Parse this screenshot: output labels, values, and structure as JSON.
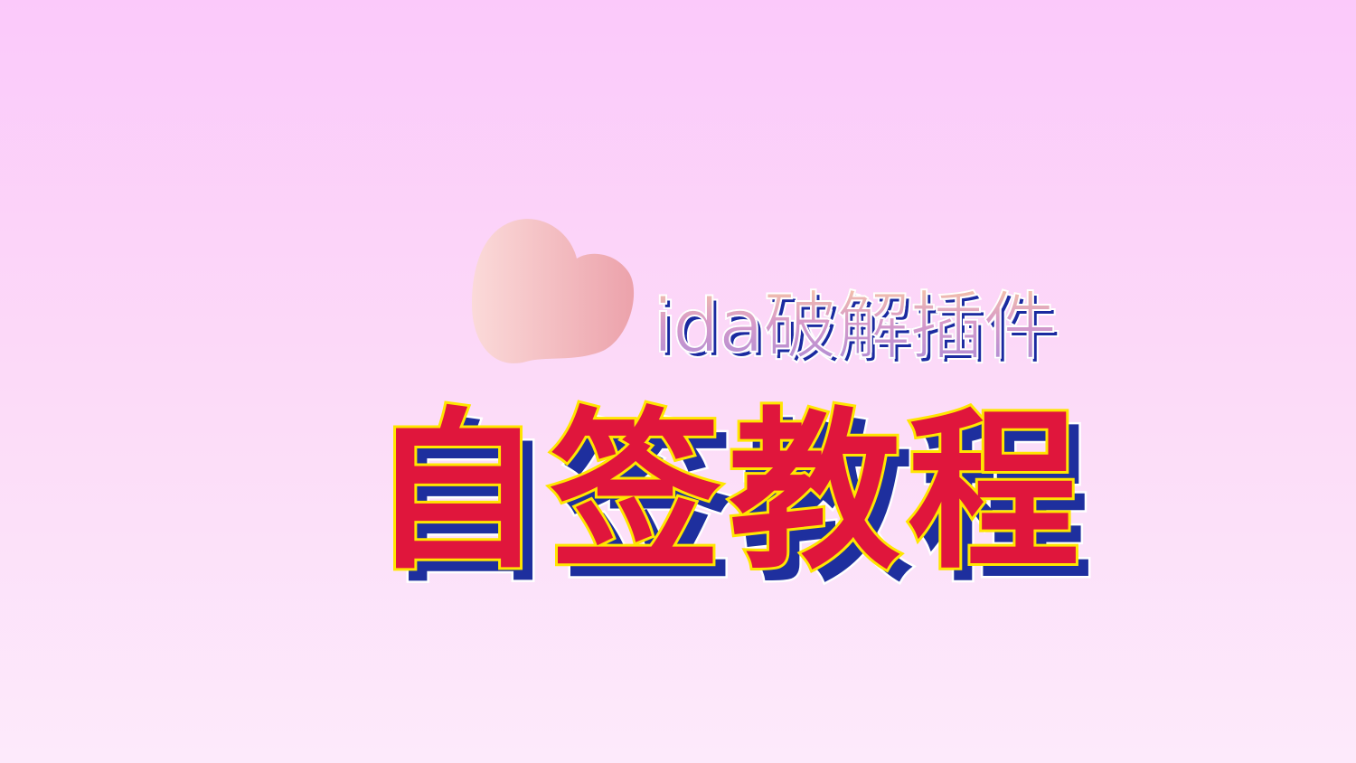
{
  "slide": {
    "subtitle": "ida破解插件",
    "title": "自签教程",
    "decoration_icon": "apple-blob-icon"
  },
  "colors": {
    "background_top": "#fbc9fa",
    "background_bottom": "#fdeafb",
    "title_fill": "#e0163c",
    "title_outline": "#ffe600",
    "title_shadow": "#1e2f9e",
    "subtitle_shadow": "#1a2aa0",
    "blob_light": "#fbd9d8",
    "blob_dark": "#eda4ac"
  }
}
